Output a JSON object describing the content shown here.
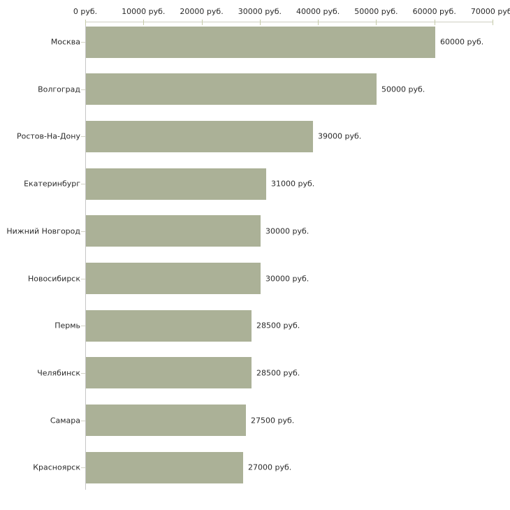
{
  "chart_data": {
    "type": "bar",
    "orientation": "horizontal",
    "title": "",
    "xlabel": "",
    "ylabel": "",
    "unit": "руб.",
    "categories": [
      "Москва",
      "Волгоград",
      "Ростов-На-Дону",
      "Екатеринбург",
      "Нижний Новгород",
      "Новосибирск",
      "Пермь",
      "Челябинск",
      "Самара",
      "Красноярск"
    ],
    "values": [
      60000,
      50000,
      39000,
      31000,
      30000,
      30000,
      28500,
      28500,
      27500,
      27000
    ],
    "value_labels": [
      "60000 руб.",
      "50000 руб.",
      "39000 руб.",
      "31000 руб.",
      "30000 руб.",
      "30000 руб.",
      "28500 руб.",
      "28500 руб.",
      "27500 руб.",
      "27000 руб."
    ],
    "x_ticks": [
      0,
      10000,
      20000,
      30000,
      40000,
      50000,
      60000,
      70000
    ],
    "x_tick_labels": [
      "0 руб.",
      "10000 руб.",
      "20000 руб.",
      "30000 руб.",
      "40000 руб.",
      "50000 руб.",
      "60000 руб.",
      "70000 руб."
    ],
    "xlim": [
      0,
      70000
    ],
    "grid": false,
    "legend": null,
    "colors": {
      "bar": "#abb197",
      "x_axis_line": "#cfcfc2",
      "y_axis_line": "#c6c6c6",
      "tick": "#c6cba9",
      "text": "#2a2a2a",
      "background": "#ffffff"
    }
  }
}
